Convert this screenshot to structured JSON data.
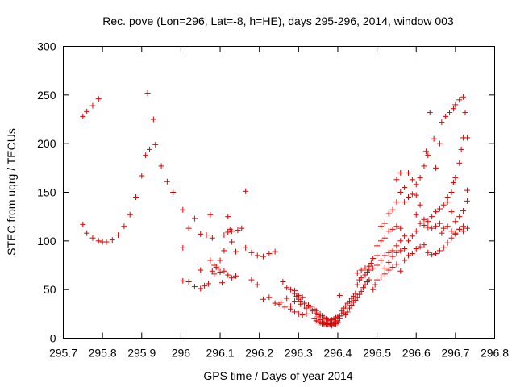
{
  "chart_data": {
    "type": "scatter",
    "title": "Rec. pove (Lon=296, Lat=-8, h=HE), days 295-296, 2014, window 003",
    "xlabel": "GPS time / Days of year 2014",
    "ylabel": "STEC from uqrg / TECUs",
    "xlim": [
      295.7,
      296.8
    ],
    "ylim": [
      0,
      300
    ],
    "xticks": [
      295.7,
      295.8,
      295.9,
      296,
      296.1,
      296.2,
      296.3,
      296.4,
      296.5,
      296.6,
      296.7,
      296.8
    ],
    "xtick_labels": [
      "295.7",
      "295.8",
      "295.9",
      "296",
      "296.1",
      "296.2",
      "296.3",
      "296.4",
      "296.5",
      "296.6",
      "296.7",
      "296.8"
    ],
    "yticks": [
      0,
      50,
      100,
      150,
      200,
      250,
      300
    ],
    "ytick_labels": [
      "0",
      "50",
      "100",
      "150",
      "200",
      "250",
      "300"
    ],
    "marker": "+",
    "color": "#e00000",
    "grid": false,
    "points": [
      [
        295.75,
        228
      ],
      [
        295.76,
        233
      ],
      [
        295.775,
        239
      ],
      [
        295.79,
        246
      ],
      [
        295.75,
        117
      ],
      [
        295.76,
        108
      ],
      [
        295.775,
        103
      ],
      [
        295.79,
        100
      ],
      [
        295.8,
        99
      ],
      [
        295.81,
        99
      ],
      [
        295.825,
        101
      ],
      [
        295.84,
        106
      ],
      [
        295.855,
        115
      ],
      [
        295.87,
        127
      ],
      [
        295.885,
        145
      ],
      [
        295.9,
        167
      ],
      [
        295.91,
        188
      ],
      [
        295.92,
        194
      ],
      [
        295.935,
        199
      ],
      [
        295.95,
        177
      ],
      [
        295.965,
        161
      ],
      [
        295.98,
        150
      ],
      [
        295.915,
        252
      ],
      [
        295.93,
        225
      ],
      [
        296.005,
        132
      ],
      [
        296.02,
        113
      ],
      [
        296.035,
        123
      ],
      [
        296.05,
        107
      ],
      [
        296.065,
        106
      ],
      [
        296.08,
        103
      ],
      [
        296.075,
        127
      ],
      [
        296.005,
        93
      ],
      [
        296.005,
        59
      ],
      [
        296.02,
        58
      ],
      [
        296.035,
        53
      ],
      [
        296.05,
        51
      ],
      [
        296.06,
        54
      ],
      [
        296.07,
        56
      ],
      [
        296.08,
        69
      ],
      [
        296.09,
        73
      ],
      [
        296.1,
        68
      ],
      [
        296.11,
        69
      ],
      [
        296.085,
        66
      ],
      [
        296.05,
        70
      ],
      [
        296.075,
        80
      ],
      [
        296.085,
        75
      ],
      [
        296.095,
        72
      ],
      [
        296.105,
        57
      ],
      [
        296.12,
        65
      ],
      [
        296.13,
        62
      ],
      [
        296.14,
        64
      ],
      [
        296.11,
        106
      ],
      [
        296.12,
        109
      ],
      [
        296.125,
        112
      ],
      [
        296.13,
        110
      ],
      [
        296.145,
        111
      ],
      [
        296.155,
        113
      ],
      [
        296.12,
        125
      ],
      [
        296.13,
        99
      ],
      [
        296.14,
        89
      ],
      [
        296.11,
        90
      ],
      [
        296.1,
        80
      ],
      [
        296.165,
        151
      ],
      [
        296.165,
        93
      ],
      [
        296.18,
        88
      ],
      [
        296.195,
        85
      ],
      [
        296.21,
        84
      ],
      [
        296.225,
        87
      ],
      [
        296.24,
        89
      ],
      [
        296.18,
        60
      ],
      [
        296.195,
        55
      ],
      [
        296.21,
        40
      ],
      [
        296.225,
        42
      ],
      [
        296.24,
        36
      ],
      [
        296.255,
        37
      ],
      [
        296.27,
        41
      ],
      [
        296.28,
        33
      ],
      [
        296.26,
        58
      ],
      [
        296.27,
        52
      ],
      [
        296.28,
        50
      ],
      [
        296.29,
        49
      ],
      [
        296.295,
        43
      ],
      [
        296.3,
        40
      ],
      [
        296.305,
        38
      ],
      [
        296.25,
        35
      ],
      [
        296.265,
        32
      ],
      [
        296.28,
        30
      ],
      [
        296.29,
        27
      ],
      [
        296.3,
        25
      ],
      [
        296.31,
        24
      ],
      [
        296.32,
        25
      ],
      [
        296.29,
        46
      ],
      [
        296.3,
        44
      ],
      [
        296.31,
        42
      ],
      [
        296.315,
        36
      ],
      [
        296.325,
        34
      ],
      [
        296.33,
        32
      ],
      [
        296.34,
        30
      ],
      [
        296.345,
        28
      ],
      [
        296.29,
        38
      ],
      [
        296.305,
        35
      ],
      [
        296.315,
        33
      ],
      [
        296.32,
        31
      ],
      [
        296.335,
        28
      ],
      [
        296.345,
        26
      ],
      [
        296.35,
        24
      ],
      [
        296.35,
        22
      ],
      [
        296.355,
        19
      ],
      [
        296.36,
        17
      ],
      [
        296.365,
        16
      ],
      [
        296.37,
        15
      ],
      [
        296.375,
        15
      ],
      [
        296.38,
        15
      ],
      [
        296.385,
        15
      ],
      [
        296.39,
        16
      ],
      [
        296.395,
        17
      ],
      [
        296.4,
        18
      ],
      [
        296.405,
        20
      ],
      [
        296.355,
        25
      ],
      [
        296.36,
        23
      ],
      [
        296.365,
        21
      ],
      [
        296.37,
        20
      ],
      [
        296.375,
        19
      ],
      [
        296.38,
        18
      ],
      [
        296.385,
        19
      ],
      [
        296.39,
        20
      ],
      [
        296.395,
        21
      ],
      [
        296.4,
        22
      ],
      [
        296.405,
        23
      ],
      [
        296.41,
        25
      ],
      [
        296.34,
        20
      ],
      [
        296.345,
        18
      ],
      [
        296.35,
        17
      ],
      [
        296.355,
        16
      ],
      [
        296.36,
        15
      ],
      [
        296.365,
        14
      ],
      [
        296.37,
        14
      ],
      [
        296.375,
        14
      ],
      [
        296.38,
        14
      ],
      [
        296.385,
        13
      ],
      [
        296.39,
        14
      ],
      [
        296.395,
        15
      ],
      [
        296.4,
        16
      ],
      [
        296.41,
        28
      ],
      [
        296.415,
        31
      ],
      [
        296.42,
        33
      ],
      [
        296.425,
        36
      ],
      [
        296.43,
        38
      ],
      [
        296.435,
        41
      ],
      [
        296.44,
        43
      ],
      [
        296.445,
        46
      ],
      [
        296.405,
        44
      ],
      [
        296.415,
        26
      ],
      [
        296.42,
        24
      ],
      [
        296.425,
        27
      ],
      [
        296.43,
        31
      ],
      [
        296.435,
        34
      ],
      [
        296.44,
        37
      ],
      [
        296.445,
        39
      ],
      [
        296.45,
        42
      ],
      [
        296.455,
        45
      ],
      [
        296.46,
        48
      ],
      [
        296.465,
        52
      ],
      [
        296.47,
        55
      ],
      [
        296.475,
        58
      ],
      [
        296.48,
        60
      ],
      [
        296.45,
        55
      ],
      [
        296.455,
        60
      ],
      [
        296.46,
        62
      ],
      [
        296.47,
        65
      ],
      [
        296.475,
        68
      ],
      [
        296.48,
        70
      ],
      [
        296.49,
        72
      ],
      [
        296.5,
        75
      ],
      [
        296.45,
        67
      ],
      [
        296.46,
        70
      ],
      [
        296.47,
        72
      ],
      [
        296.48,
        74
      ],
      [
        296.485,
        77
      ],
      [
        296.49,
        82
      ],
      [
        296.5,
        85
      ],
      [
        296.49,
        50
      ],
      [
        296.495,
        55
      ],
      [
        296.5,
        60
      ],
      [
        296.51,
        63
      ],
      [
        296.52,
        66
      ],
      [
        296.53,
        70
      ],
      [
        296.54,
        73
      ],
      [
        296.55,
        76
      ],
      [
        296.51,
        80
      ],
      [
        296.52,
        85
      ],
      [
        296.53,
        88
      ],
      [
        296.54,
        90
      ],
      [
        296.55,
        95
      ],
      [
        296.56,
        100
      ],
      [
        296.57,
        105
      ],
      [
        296.5,
        95
      ],
      [
        296.51,
        100
      ],
      [
        296.52,
        103
      ],
      [
        296.53,
        110
      ],
      [
        296.54,
        112
      ],
      [
        296.55,
        115
      ],
      [
        296.56,
        113
      ],
      [
        296.51,
        115
      ],
      [
        296.52,
        118
      ],
      [
        296.53,
        128
      ],
      [
        296.54,
        132
      ],
      [
        296.55,
        140
      ],
      [
        296.56,
        150
      ],
      [
        296.57,
        155
      ],
      [
        296.52,
        72
      ],
      [
        296.53,
        78
      ],
      [
        296.54,
        84
      ],
      [
        296.55,
        88
      ],
      [
        296.56,
        90
      ],
      [
        296.57,
        92
      ],
      [
        296.58,
        85
      ],
      [
        296.59,
        87
      ],
      [
        296.56,
        69
      ],
      [
        296.57,
        80
      ],
      [
        296.58,
        100
      ],
      [
        296.59,
        105
      ],
      [
        296.6,
        110
      ],
      [
        296.61,
        118
      ],
      [
        296.62,
        116
      ],
      [
        296.63,
        114
      ],
      [
        296.55,
        163
      ],
      [
        296.56,
        170
      ],
      [
        296.58,
        170
      ],
      [
        296.59,
        163
      ],
      [
        296.6,
        147
      ],
      [
        296.61,
        137
      ],
      [
        296.6,
        127
      ],
      [
        296.62,
        122
      ],
      [
        296.57,
        140
      ],
      [
        296.58,
        145
      ],
      [
        296.59,
        148
      ],
      [
        296.6,
        158
      ],
      [
        296.61,
        165
      ],
      [
        296.62,
        177
      ],
      [
        296.625,
        192
      ],
      [
        296.63,
        188
      ],
      [
        296.6,
        92
      ],
      [
        296.61,
        94
      ],
      [
        296.62,
        96
      ],
      [
        296.63,
        88
      ],
      [
        296.64,
        86
      ],
      [
        296.65,
        87
      ],
      [
        296.66,
        90
      ],
      [
        296.67,
        93
      ],
      [
        296.63,
        120
      ],
      [
        296.64,
        125
      ],
      [
        296.65,
        130
      ],
      [
        296.66,
        133
      ],
      [
        296.67,
        137
      ],
      [
        296.68,
        140
      ],
      [
        296.635,
        232
      ],
      [
        296.645,
        205
      ],
      [
        296.65,
        175
      ],
      [
        296.66,
        200
      ],
      [
        296.665,
        222
      ],
      [
        296.675,
        228
      ],
      [
        296.685,
        232
      ],
      [
        296.695,
        236
      ],
      [
        296.7,
        240
      ],
      [
        296.71,
        245
      ],
      [
        296.72,
        248
      ],
      [
        296.64,
        113
      ],
      [
        296.65,
        115
      ],
      [
        296.66,
        118
      ],
      [
        296.665,
        108
      ],
      [
        296.67,
        113
      ],
      [
        296.68,
        115
      ],
      [
        296.69,
        110
      ],
      [
        296.7,
        108
      ],
      [
        296.71,
        112
      ],
      [
        296.72,
        110
      ],
      [
        296.73,
        113
      ],
      [
        296.68,
        145
      ],
      [
        296.69,
        130
      ],
      [
        296.7,
        120
      ],
      [
        296.71,
        125
      ],
      [
        296.72,
        131
      ],
      [
        296.73,
        141
      ],
      [
        296.68,
        98
      ],
      [
        296.69,
        103
      ],
      [
        296.7,
        107
      ],
      [
        296.71,
        112
      ],
      [
        296.72,
        115
      ],
      [
        296.69,
        150
      ],
      [
        296.7,
        165
      ],
      [
        296.71,
        180
      ],
      [
        296.715,
        194
      ],
      [
        296.72,
        206
      ],
      [
        296.725,
        232
      ],
      [
        296.73,
        206
      ],
      [
        296.73,
        152
      ],
      [
        296.695,
        160
      ]
    ]
  }
}
